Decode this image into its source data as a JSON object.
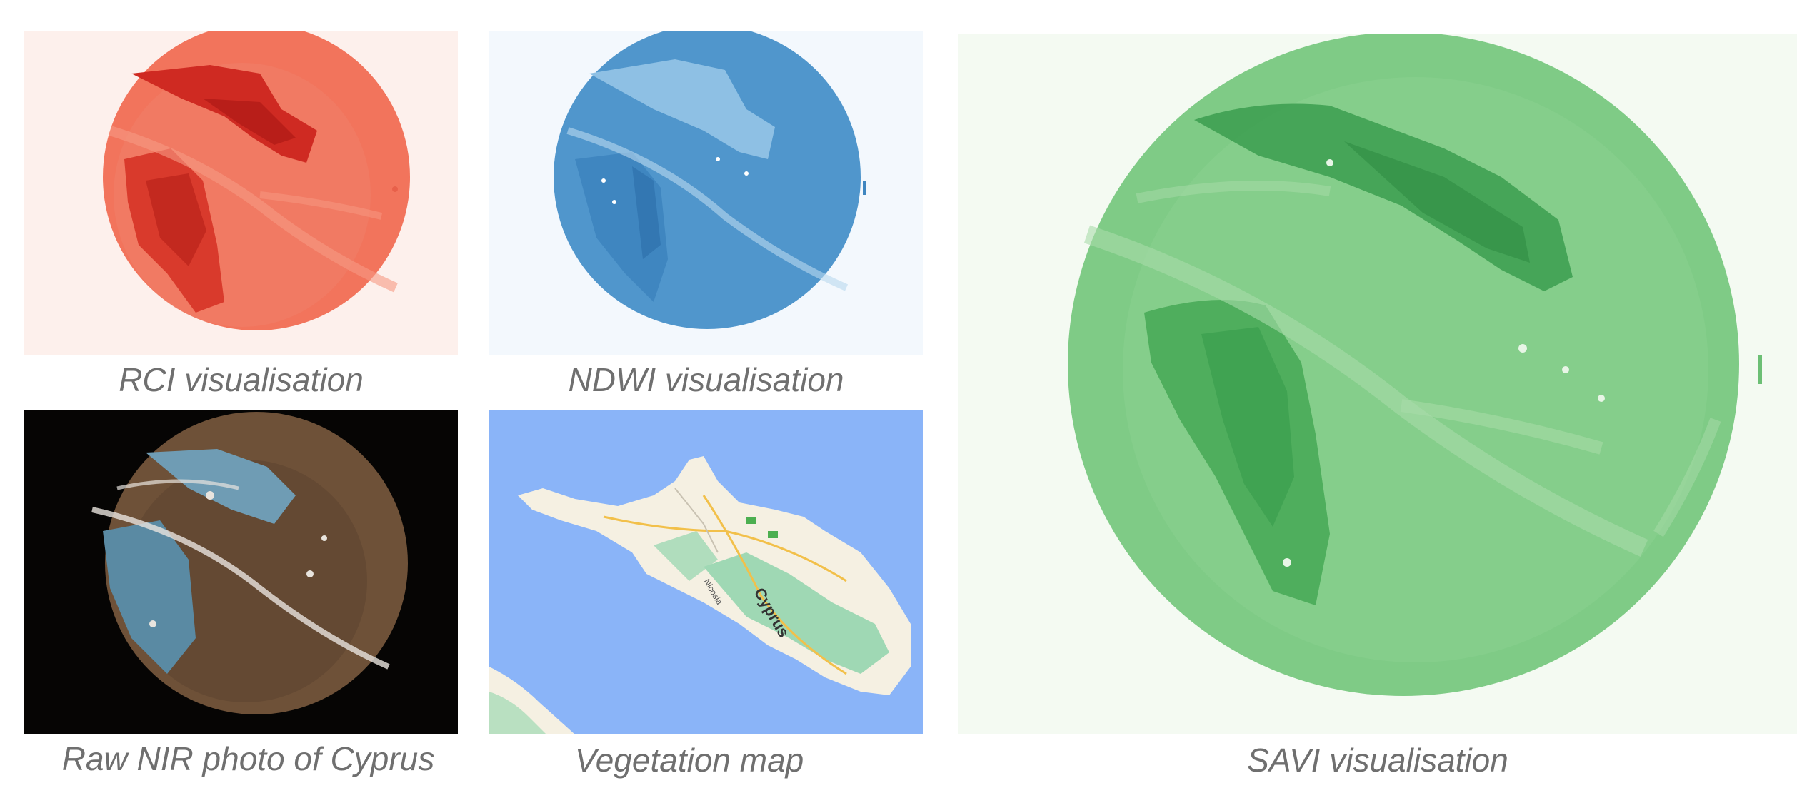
{
  "panels": {
    "rci": {
      "caption": "RCI visualisation"
    },
    "ndwi": {
      "caption": "NDWI visualisation"
    },
    "nir": {
      "caption": "Raw NIR photo of Cyprus"
    },
    "map": {
      "caption": "Vegetation map",
      "map_label_main": "Cyprus",
      "map_label_city": "Nicosia"
    },
    "savi": {
      "caption": "SAVI visualisation"
    }
  },
  "colors": {
    "rci_bg": "#fdf0ec",
    "rci_base": "#f2745c",
    "rci_dark": "#cf2a22",
    "rci_light": "#f79a83",
    "ndwi_bg": "#f3f8fd",
    "ndwi_base": "#5096cc",
    "ndwi_dark": "#2c6ea8",
    "ndwi_light": "#8ec0e4",
    "nir_bg": "#060504",
    "nir_base": "#6e5138",
    "nir_blue": "#6f9cb4",
    "nir_white": "#e8e4de",
    "map_sea": "#8ab4f8",
    "map_land": "#f5f0e2",
    "map_green": "#9fd8b4",
    "map_road": "#f2c04a",
    "savi_bg": "#f4faf2",
    "savi_base": "#7fcb86",
    "savi_dark": "#3b9e4f",
    "savi_light": "#a9dcaa",
    "caption": "#6f6f6f"
  }
}
